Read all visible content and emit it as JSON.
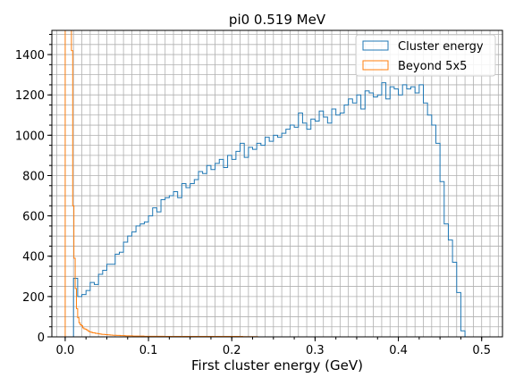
{
  "chart_data": {
    "type": "histogram",
    "title": "pi0 0.519 MeV",
    "xlabel": "First cluster energy (GeV)",
    "ylabel": "",
    "xlim": [
      -0.016,
      0.525
    ],
    "ylim": [
      0,
      1520
    ],
    "grid": true,
    "bin_width": 0.005,
    "x_ticks": [
      0.0,
      0.1,
      0.2,
      0.3,
      0.4,
      0.5
    ],
    "x_tick_labels": [
      "0.0",
      "0.1",
      "0.2",
      "0.3",
      "0.4",
      "0.5"
    ],
    "y_ticks": [
      0,
      200,
      400,
      600,
      800,
      1000,
      1200,
      1400
    ],
    "y_tick_labels": [
      "0",
      "200",
      "400",
      "600",
      "800",
      "1000",
      "1200",
      "1400"
    ],
    "legend_position": "top-right",
    "series": [
      {
        "name": "Cluster energy",
        "color": "#1f77b4",
        "x_start": 0.0,
        "values": [
          0,
          0,
          290,
          200,
          210,
          230,
          270,
          260,
          310,
          330,
          360,
          360,
          410,
          420,
          470,
          500,
          520,
          550,
          560,
          570,
          600,
          640,
          620,
          680,
          690,
          700,
          720,
          690,
          760,
          740,
          760,
          780,
          820,
          810,
          850,
          830,
          860,
          880,
          840,
          900,
          880,
          920,
          960,
          890,
          940,
          930,
          960,
          950,
          990,
          970,
          1000,
          990,
          1010,
          1030,
          1050,
          1040,
          1110,
          1060,
          1030,
          1080,
          1070,
          1120,
          1090,
          1060,
          1130,
          1100,
          1110,
          1150,
          1180,
          1160,
          1200,
          1130,
          1220,
          1210,
          1190,
          1200,
          1260,
          1180,
          1240,
          1230,
          1200,
          1250,
          1230,
          1240,
          1210,
          1250,
          1160,
          1100,
          1050,
          960,
          770,
          560,
          480,
          370,
          220,
          30
        ]
      },
      {
        "name": "Beyond 5x5",
        "color": "#ff7f0e",
        "x_start": 0.0,
        "bin_width": 0.0015,
        "values": [
          1520,
          1520,
          1520,
          1520,
          1520,
          1420,
          650,
          390,
          240,
          140,
          95,
          70,
          60,
          55,
          45,
          40,
          38,
          35,
          30,
          26,
          24,
          22,
          20,
          20,
          18,
          17,
          16,
          15,
          14,
          13,
          12,
          12,
          11,
          11,
          10,
          10,
          9,
          9,
          8,
          8,
          8,
          7,
          7,
          7,
          6,
          6,
          6,
          6,
          5,
          5,
          5,
          5,
          5,
          5,
          4,
          4,
          4,
          4,
          4,
          4,
          4,
          4,
          4,
          3,
          3,
          3,
          3,
          3,
          3,
          3,
          3,
          3,
          3,
          3,
          3,
          3,
          3,
          3,
          3,
          2,
          2,
          2,
          2,
          2,
          2,
          2,
          2,
          2,
          2,
          2,
          2,
          2,
          2,
          2,
          2,
          2,
          2,
          2,
          2,
          2,
          2,
          2,
          2,
          2,
          2,
          2,
          2,
          2,
          2,
          2,
          2,
          2,
          2,
          2,
          2,
          2,
          2,
          2,
          2,
          2,
          2,
          2,
          2,
          2,
          2,
          2,
          2,
          2,
          2,
          2,
          2,
          2,
          2,
          2,
          2,
          2,
          2,
          2,
          2,
          2,
          2,
          2,
          1,
          1,
          1,
          1,
          1,
          1,
          1,
          1,
          1,
          1,
          1,
          1
        ]
      }
    ]
  }
}
